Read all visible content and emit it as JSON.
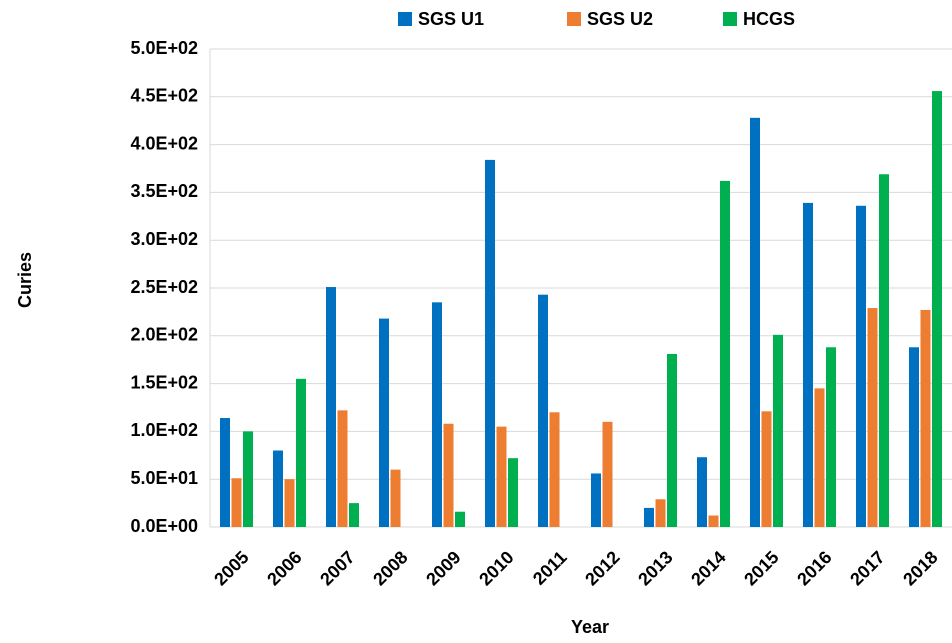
{
  "chart_data": {
    "type": "bar",
    "x_label": "Year",
    "y_label": "Curies",
    "categories": [
      "2005",
      "2006",
      "2007",
      "2008",
      "2009",
      "2010",
      "2011",
      "2012",
      "2013",
      "2014",
      "2015",
      "2016",
      "2017",
      "2018"
    ],
    "series": [
      {
        "name": "SGS U1",
        "color": "#0070c0",
        "values": [
          114,
          80,
          251,
          218,
          235,
          384,
          243,
          56,
          20,
          73,
          428,
          339,
          336,
          188
        ]
      },
      {
        "name": "SGS U2",
        "color": "#ed7d31",
        "values": [
          51,
          50,
          122,
          60,
          108,
          105,
          120,
          110,
          29,
          12,
          121,
          145,
          229,
          227
        ]
      },
      {
        "name": "HCGS",
        "color": "#00b050",
        "values": [
          100,
          155,
          25,
          null,
          16,
          72,
          null,
          null,
          181,
          362,
          201,
          188,
          369,
          456
        ]
      }
    ],
    "ylim": [
      0,
      500
    ],
    "yticks": [
      {
        "value": 0,
        "label": "0.0E+00"
      },
      {
        "value": 50,
        "label": "5.0E+01"
      },
      {
        "value": 100,
        "label": "1.0E+02"
      },
      {
        "value": 150,
        "label": "1.5E+02"
      },
      {
        "value": 200,
        "label": "2.0E+02"
      },
      {
        "value": 250,
        "label": "2.5E+02"
      },
      {
        "value": 300,
        "label": "3.0E+02"
      },
      {
        "value": 350,
        "label": "3.5E+02"
      },
      {
        "value": 400,
        "label": "4.0E+02"
      },
      {
        "value": 450,
        "label": "4.5E+02"
      },
      {
        "value": 500,
        "label": "5.0E+02"
      }
    ],
    "grid": true,
    "legend": "top"
  }
}
